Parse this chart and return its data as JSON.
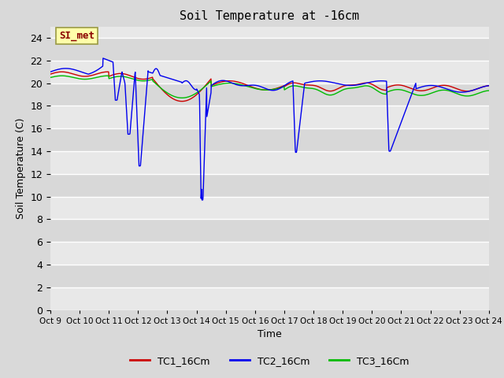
{
  "title": "Soil Temperature at -16cm",
  "xlabel": "Time",
  "ylabel": "Soil Temperature (C)",
  "ylim": [
    0,
    25
  ],
  "yticks": [
    0,
    2,
    4,
    6,
    8,
    10,
    12,
    14,
    16,
    18,
    20,
    22,
    24
  ],
  "background_color": "#e0e0e0",
  "plot_bg_color": "#d8d8d8",
  "grid_color": "#c8c8c8",
  "legend_labels": [
    "TC1_16Cm",
    "TC2_16Cm",
    "TC3_16Cm"
  ],
  "legend_colors": [
    "#cc0000",
    "#0000ee",
    "#00bb00"
  ],
  "watermark_text": "SI_met",
  "watermark_color": "#8b0000",
  "watermark_bg": "#ffffaa",
  "xtick_labels": [
    "Oct 9",
    "Oct 10",
    "Oct 11",
    "Oct 12",
    "Oct 13",
    "Oct 14",
    "Oct 15",
    "Oct 16",
    "Oct 17",
    "Oct 18",
    "Oct 19",
    "Oct 20",
    "Oct 21",
    "Oct 22",
    "Oct 23",
    "Oct 24"
  ]
}
